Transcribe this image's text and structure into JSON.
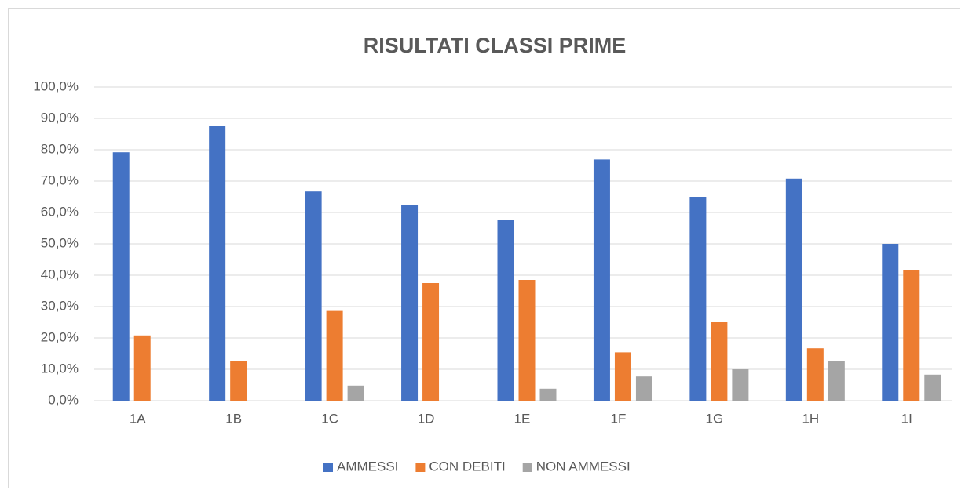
{
  "chart_data": {
    "type": "bar",
    "title": "RISULTATI CLASSI PRIME",
    "categories": [
      "1A",
      "1B",
      "1C",
      "1D",
      "1E",
      "1F",
      "1G",
      "1H",
      "1I"
    ],
    "series": [
      {
        "name": "AMMESSI",
        "color": "#4472c4",
        "values": [
          79.2,
          87.5,
          66.7,
          62.5,
          57.7,
          76.9,
          65.0,
          70.8,
          50.0
        ]
      },
      {
        "name": "CON DEBITI",
        "color": "#ed7d31",
        "values": [
          20.8,
          12.5,
          28.6,
          37.5,
          38.5,
          15.4,
          25.0,
          16.7,
          41.7
        ]
      },
      {
        "name": "NON AMMESSI",
        "color": "#a5a5a5",
        "values": [
          0,
          0,
          4.8,
          0,
          3.8,
          7.7,
          10.0,
          12.5,
          8.3
        ]
      }
    ],
    "ylim": [
      0,
      100
    ],
    "yticks": [
      {
        "value": 0,
        "label": "0,0%"
      },
      {
        "value": 10,
        "label": "10,0%"
      },
      {
        "value": 20,
        "label": "20,0%"
      },
      {
        "value": 30,
        "label": "30,0%"
      },
      {
        "value": 40,
        "label": "40,0%"
      },
      {
        "value": 50,
        "label": "50,0%"
      },
      {
        "value": 60,
        "label": "60,0%"
      },
      {
        "value": 70,
        "label": "70,0%"
      },
      {
        "value": 80,
        "label": "80,0%"
      },
      {
        "value": 90,
        "label": "90,0%"
      },
      {
        "value": 100,
        "label": "100,0%"
      }
    ],
    "grid": true,
    "legend": "bottom"
  }
}
